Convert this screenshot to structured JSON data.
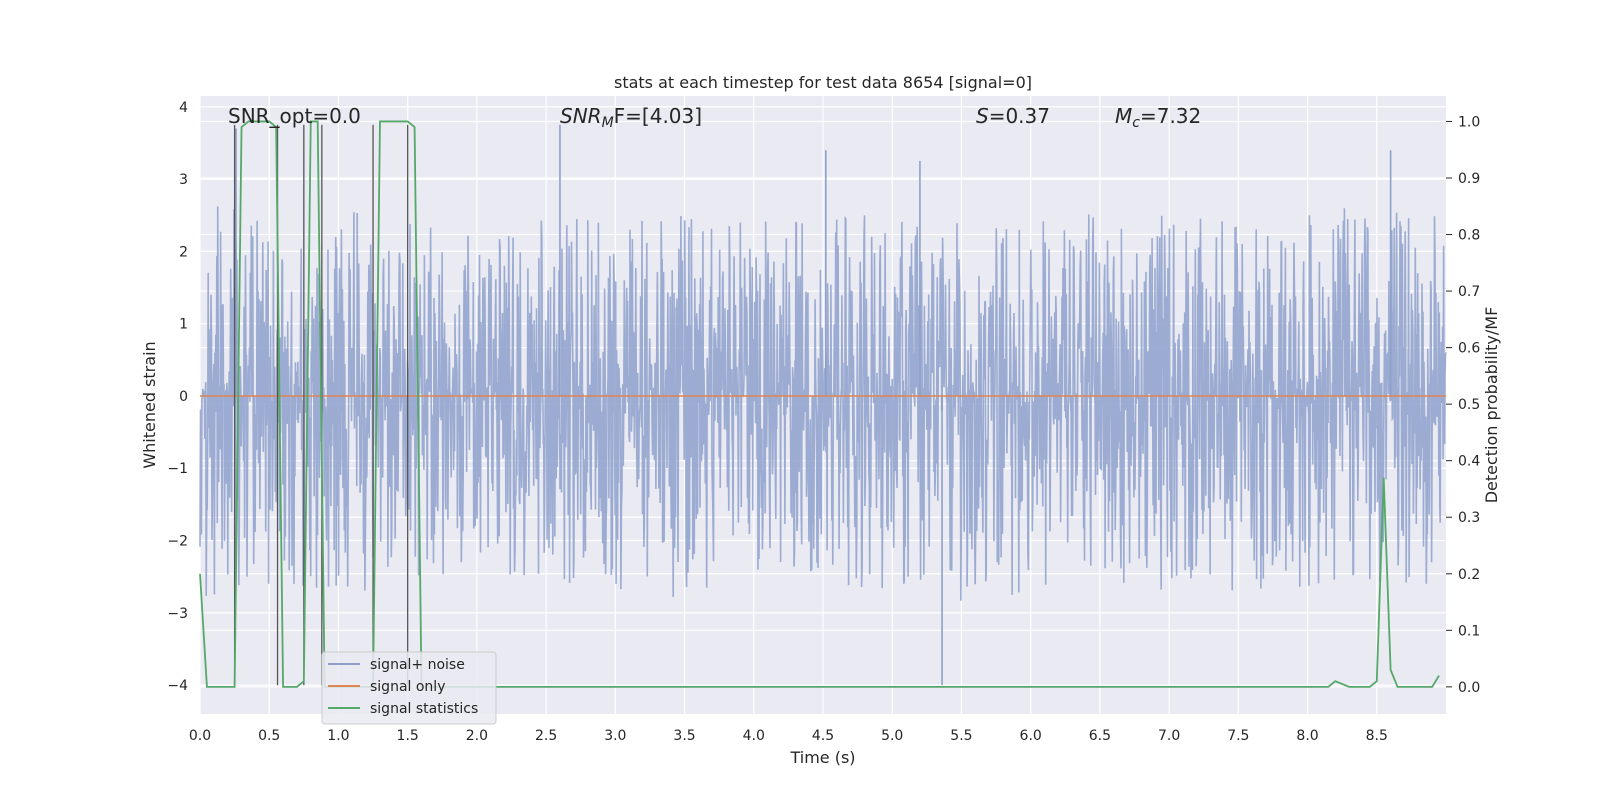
{
  "chart_data": {
    "type": "line",
    "title": "stats at each timestep for test data 8654 [signal=0]",
    "xlabel": "Time (s)",
    "ylabel_left": "Whitened strain",
    "ylabel_right": "Detection probability/MF",
    "xlim": [
      0.0,
      9.0
    ],
    "ylim_left": [
      -4.4,
      4.15
    ],
    "ylim_right": [
      -0.048,
      1.045
    ],
    "x_ticks": [
      "0.0",
      "0.5",
      "1.0",
      "1.5",
      "2.0",
      "2.5",
      "3.0",
      "3.5",
      "4.0",
      "4.5",
      "5.0",
      "5.5",
      "6.0",
      "6.5",
      "7.0",
      "7.5",
      "8.0",
      "8.5"
    ],
    "x_tick_values": [
      0.0,
      0.5,
      1.0,
      1.5,
      2.0,
      2.5,
      3.0,
      3.5,
      4.0,
      4.5,
      5.0,
      5.5,
      6.0,
      6.5,
      7.0,
      7.5,
      8.0,
      8.5
    ],
    "y_left_ticks": [
      "−4",
      "−3",
      "−2",
      "−1",
      "0",
      "1",
      "2",
      "3",
      "4"
    ],
    "y_left_tick_values": [
      -4,
      -3,
      -2,
      -1,
      0,
      1,
      2,
      3,
      4
    ],
    "y_right_ticks": [
      "0.0",
      "0.1",
      "0.2",
      "0.3",
      "0.4",
      "0.5",
      "0.6",
      "0.7",
      "0.8",
      "0.9",
      "1.0"
    ],
    "y_right_tick_values": [
      0.0,
      0.1,
      0.2,
      0.3,
      0.4,
      0.5,
      0.6,
      0.7,
      0.8,
      0.9,
      1.0
    ],
    "grid": true,
    "legend_position": "bottom-left",
    "annotations": {
      "snr_opt": "SNR_opt=0.0",
      "snr_mf_base": "SNR",
      "snr_mf_sub": "M",
      "snr_mf_rest": "F=[4.03]",
      "s_label": "S",
      "s_value": "=0.37",
      "mc_base": "M",
      "mc_sub": "c",
      "mc_value": "=7.32"
    },
    "series": [
      {
        "name": "signal+ noise",
        "axis": "left",
        "color": "#8da0cb",
        "noise_envelope": {
          "x": [
            0.0,
            0.5,
            1.0,
            1.5,
            2.0,
            2.5,
            3.0,
            3.5,
            4.0,
            4.5,
            5.0,
            5.5,
            6.0,
            6.5,
            7.0,
            7.5,
            8.0,
            8.5,
            9.0
          ],
          "upper": [
            2.9,
            2.5,
            2.6,
            2.4,
            2.2,
            2.5,
            2.4,
            2.5,
            2.4,
            2.6,
            2.5,
            2.4,
            2.5,
            2.6,
            2.5,
            2.4,
            2.5,
            2.7,
            2.5
          ],
          "lower": [
            -3.0,
            -2.6,
            -2.8,
            -2.6,
            -2.5,
            -2.6,
            -2.7,
            -2.8,
            -2.6,
            -2.6,
            -2.7,
            -2.9,
            -2.7,
            -2.6,
            -2.7,
            -2.7,
            -2.7,
            -2.6,
            -2.7
          ]
        },
        "spikes": [
          {
            "x": 2.6,
            "y": 3.75
          },
          {
            "x": 5.36,
            "y": -4.0
          },
          {
            "x": 8.6,
            "y": 3.4
          },
          {
            "x": 0.26,
            "y": 3.7
          },
          {
            "x": 4.52,
            "y": 3.4
          },
          {
            "x": 5.2,
            "y": 3.25
          }
        ]
      },
      {
        "name": "signal only",
        "axis": "left",
        "color": "#dd8452",
        "x": [
          0.0,
          9.0
        ],
        "y": [
          0.0,
          0.0
        ]
      },
      {
        "name": "signal statistics",
        "axis": "right",
        "color": "#55a868",
        "x": [
          0.0,
          0.05,
          0.25,
          0.3,
          0.35,
          0.5,
          0.55,
          0.6,
          0.63,
          0.7,
          0.75,
          0.8,
          0.85,
          0.9,
          0.95,
          1.0,
          1.2,
          1.25,
          1.3,
          1.35,
          1.5,
          1.55,
          1.6,
          2.0,
          3.0,
          4.0,
          5.0,
          6.0,
          7.0,
          8.0,
          8.15,
          8.2,
          8.3,
          8.45,
          8.5,
          8.55,
          8.6,
          8.65,
          8.8,
          8.9,
          8.95
        ],
        "y": [
          0.2,
          0.0,
          0.0,
          0.99,
          1.0,
          1.0,
          0.99,
          0.0,
          0.0,
          0.0,
          0.01,
          1.0,
          1.0,
          0.0,
          0.0,
          0.0,
          0.0,
          0.0,
          1.0,
          1.0,
          1.0,
          0.99,
          0.0,
          0.0,
          0.0,
          0.0,
          0.0,
          0.0,
          0.0,
          0.0,
          0.0,
          0.01,
          0.0,
          0.0,
          0.01,
          0.37,
          0.03,
          0.0,
          0.0,
          0.0,
          0.02
        ]
      }
    ],
    "vertical_markers_x": [
      0.25,
      0.56,
      0.75,
      0.88,
      1.25,
      1.5
    ]
  }
}
